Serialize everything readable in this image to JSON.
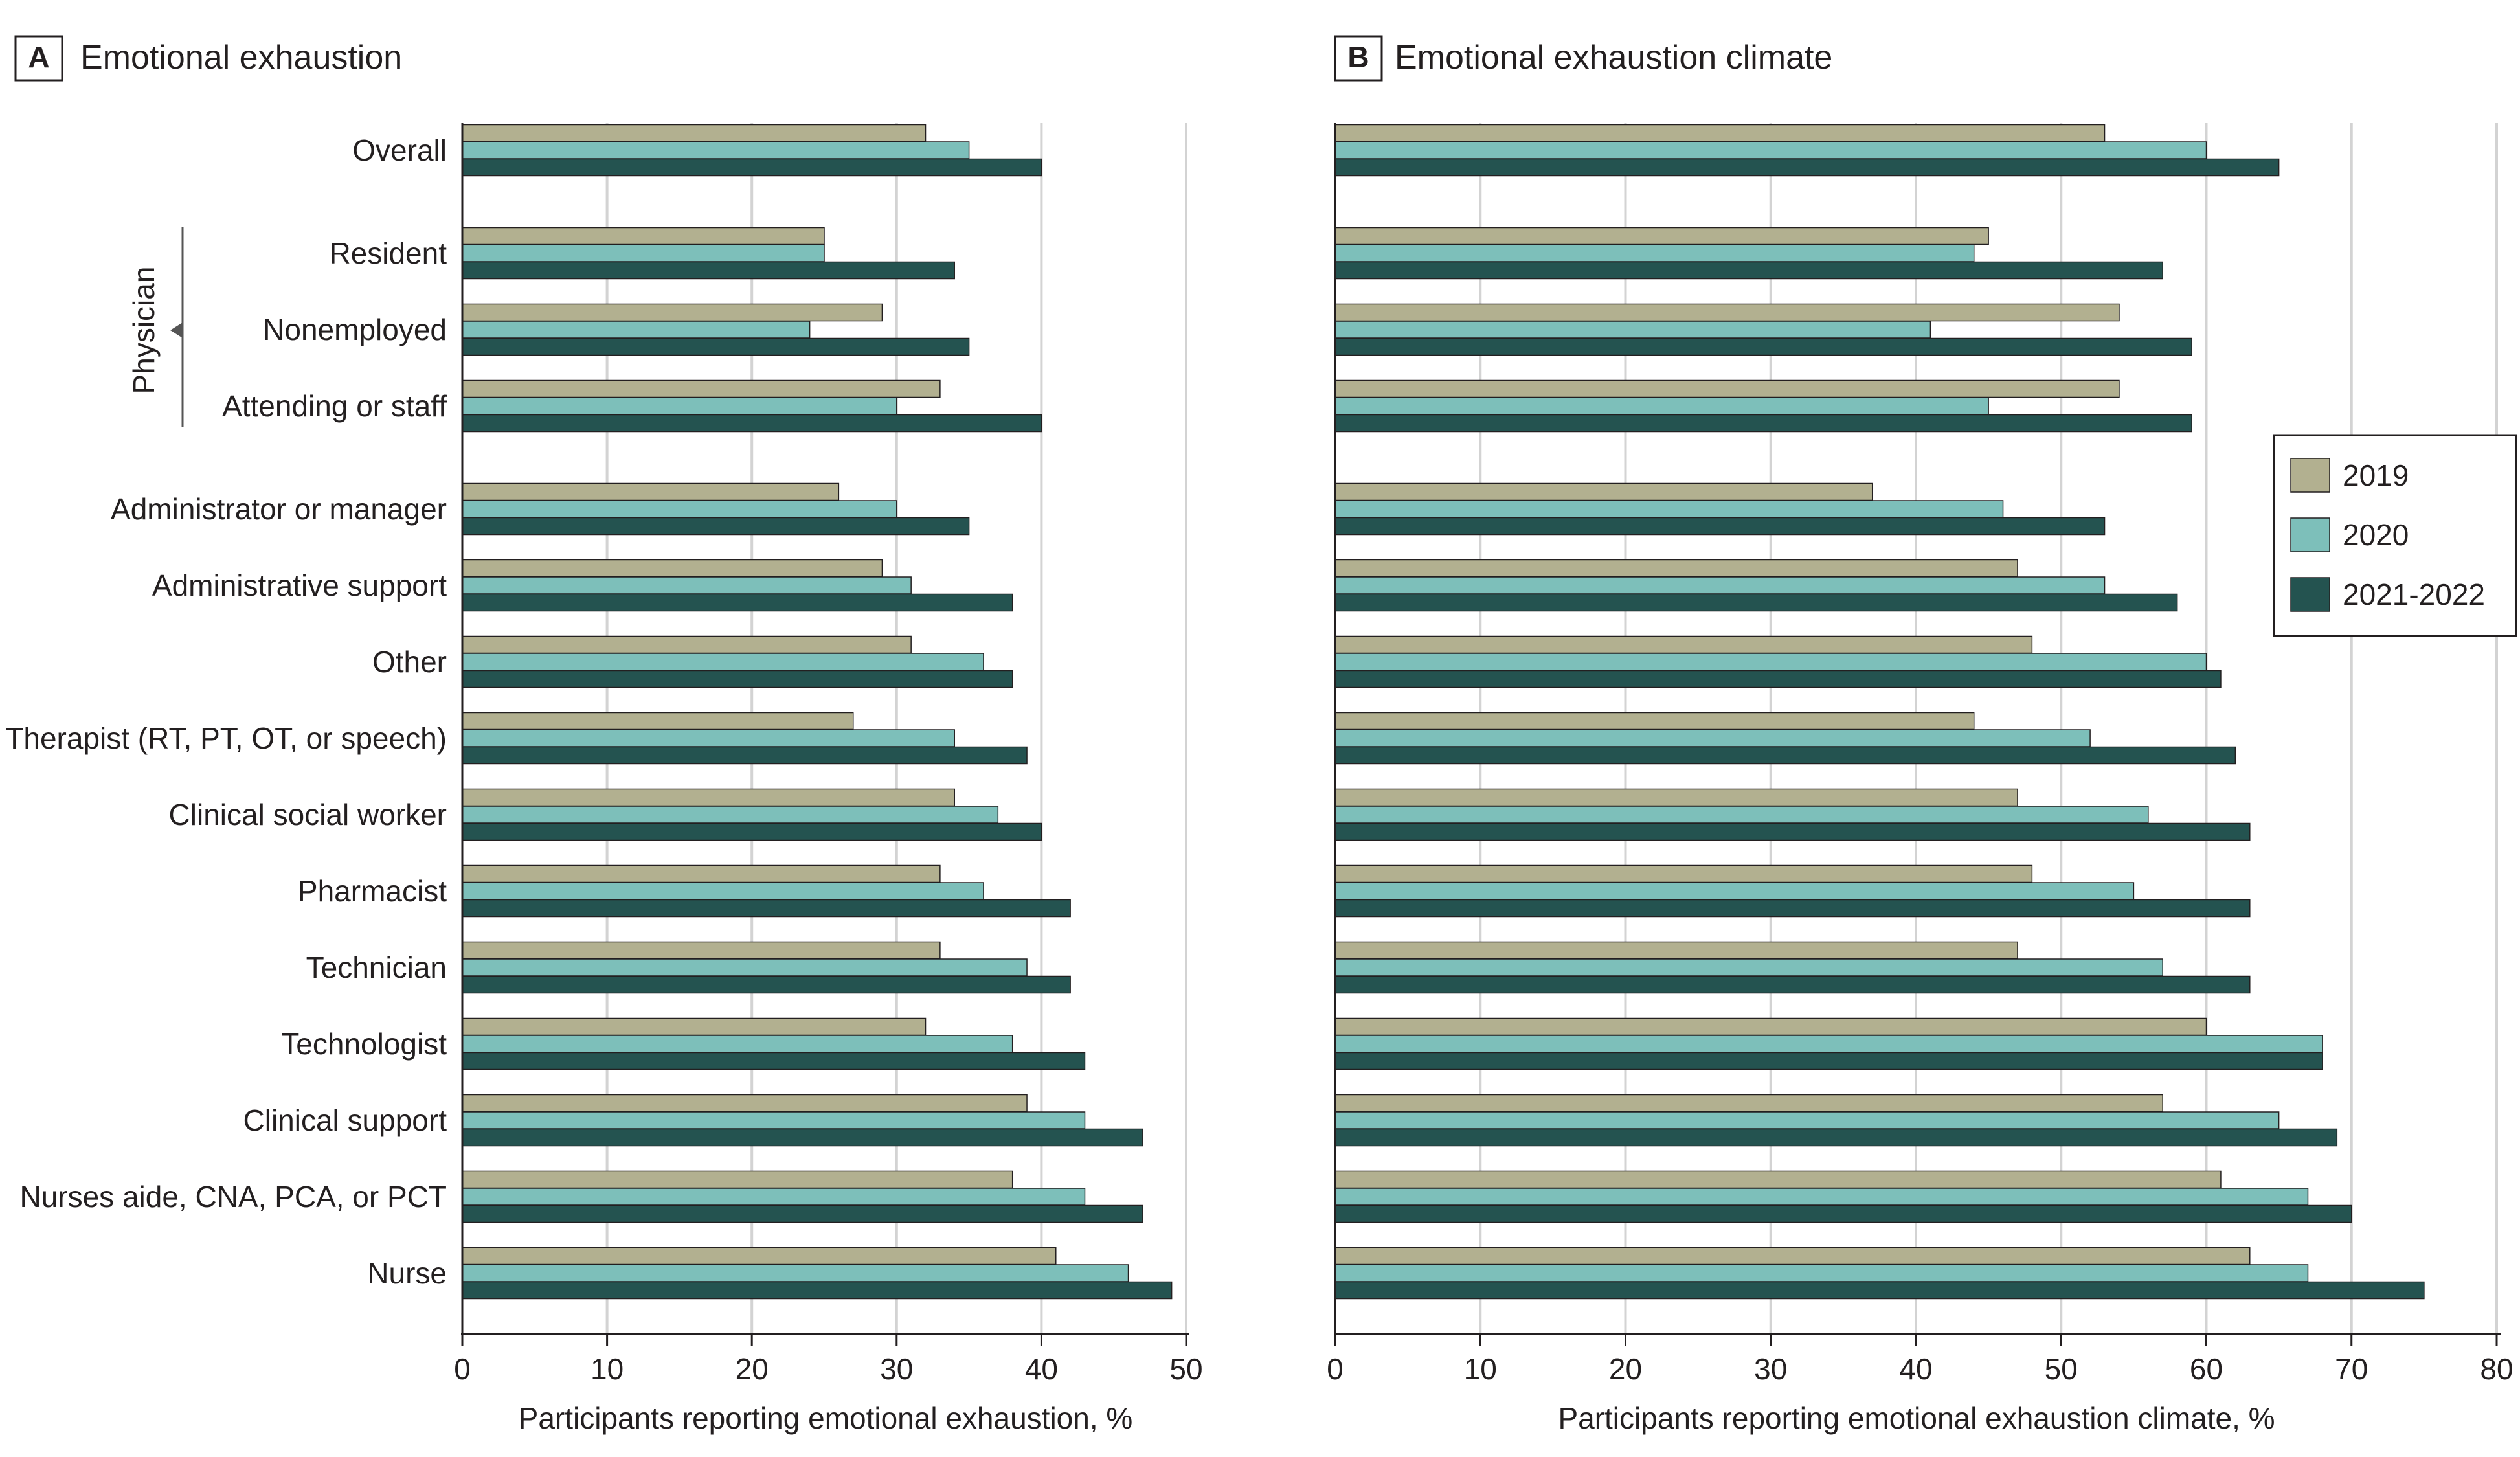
{
  "categories": [
    "Overall",
    "Resident",
    "Nonemployed",
    "Attending or staff",
    "Administrator or manager",
    "Administrative support",
    "Other",
    "Therapist (RT, PT, OT, or speech)",
    "Clinical social worker",
    "Pharmacist",
    "Technician",
    "Technologist",
    "Clinical support",
    "Nurses aide, CNA, PCA, or PCT",
    "Nurse"
  ],
  "group_label": "Physician",
  "legend": [
    {
      "name": "2019",
      "color": "#b2b090"
    },
    {
      "name": "2020",
      "color": "#7dbfba"
    },
    {
      "name": "2021-2022",
      "color": "#245350"
    }
  ],
  "chart_data": [
    {
      "type": "bar",
      "orientation": "horizontal",
      "panel_letter": "A",
      "title": "Emotional exhaustion",
      "xlabel": "Participants reporting emotional exhaustion, %",
      "ylabel": "",
      "xlim": [
        0,
        50
      ],
      "ticks": [
        0,
        10,
        20,
        30,
        40,
        50
      ],
      "grid": true,
      "series": [
        {
          "name": "2019",
          "values": [
            32,
            25,
            29,
            33,
            26,
            29,
            31,
            27,
            34,
            33,
            33,
            32,
            39,
            38,
            41
          ]
        },
        {
          "name": "2020",
          "values": [
            35,
            25,
            24,
            30,
            30,
            31,
            36,
            34,
            37,
            36,
            39,
            38,
            43,
            43,
            46
          ]
        },
        {
          "name": "2021-2022",
          "values": [
            40,
            34,
            35,
            40,
            35,
            38,
            38,
            39,
            40,
            42,
            42,
            43,
            47,
            47,
            49
          ]
        }
      ]
    },
    {
      "type": "bar",
      "orientation": "horizontal",
      "panel_letter": "B",
      "title": "Emotional exhaustion climate",
      "xlabel": "Participants reporting emotional exhaustion climate, %",
      "ylabel": "",
      "xlim": [
        0,
        80
      ],
      "ticks": [
        0,
        10,
        20,
        30,
        40,
        50,
        60,
        70,
        80
      ],
      "grid": true,
      "legend_position": "right",
      "series": [
        {
          "name": "2019",
          "values": [
            53,
            45,
            54,
            54,
            37,
            47,
            48,
            44,
            47,
            48,
            47,
            60,
            57,
            61,
            63
          ]
        },
        {
          "name": "2020",
          "values": [
            60,
            44,
            41,
            45,
            46,
            53,
            60,
            52,
            56,
            55,
            57,
            68,
            65,
            67,
            67
          ]
        },
        {
          "name": "2021-2022",
          "values": [
            65,
            57,
            59,
            59,
            53,
            58,
            61,
            62,
            63,
            63,
            63,
            68,
            69,
            70,
            75
          ]
        }
      ]
    }
  ]
}
